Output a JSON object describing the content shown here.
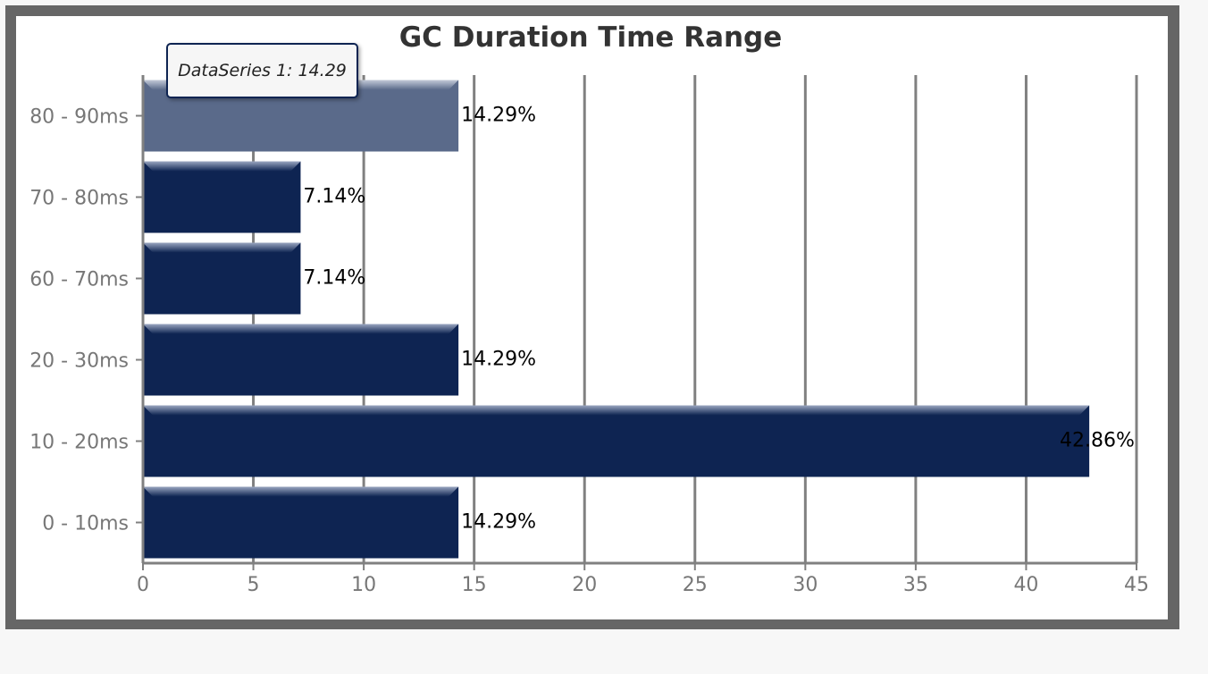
{
  "chart_data": {
    "type": "bar",
    "orientation": "horizontal",
    "title": "GC Duration Time Range",
    "categories": [
      "80 - 90ms",
      "70 - 80ms",
      "60 - 70ms",
      "20 - 30ms",
      "10 - 20ms",
      "0 - 10ms"
    ],
    "series": [
      {
        "name": "DataSeries 1",
        "values": [
          14.29,
          7.14,
          7.14,
          14.29,
          42.86,
          14.29
        ],
        "labels": [
          "14.29%",
          "7.14%",
          "7.14%",
          "14.29%",
          "42.86%",
          "14.29%"
        ]
      }
    ],
    "xlim": [
      0,
      45
    ],
    "xticks": [
      "0",
      "5",
      "10",
      "15",
      "20",
      "25",
      "30",
      "35",
      "40",
      "45"
    ],
    "xticks_values": [
      0,
      5,
      10,
      15,
      20,
      25,
      30,
      35,
      40,
      45
    ],
    "grid": true,
    "highlighted_index": 0,
    "tooltip": "DataSeries 1: 14.29",
    "colors": {
      "bar": "#0e2452",
      "bar_highlight": "#5a6a8a",
      "grid": "#808080",
      "frame": "#666666"
    }
  }
}
